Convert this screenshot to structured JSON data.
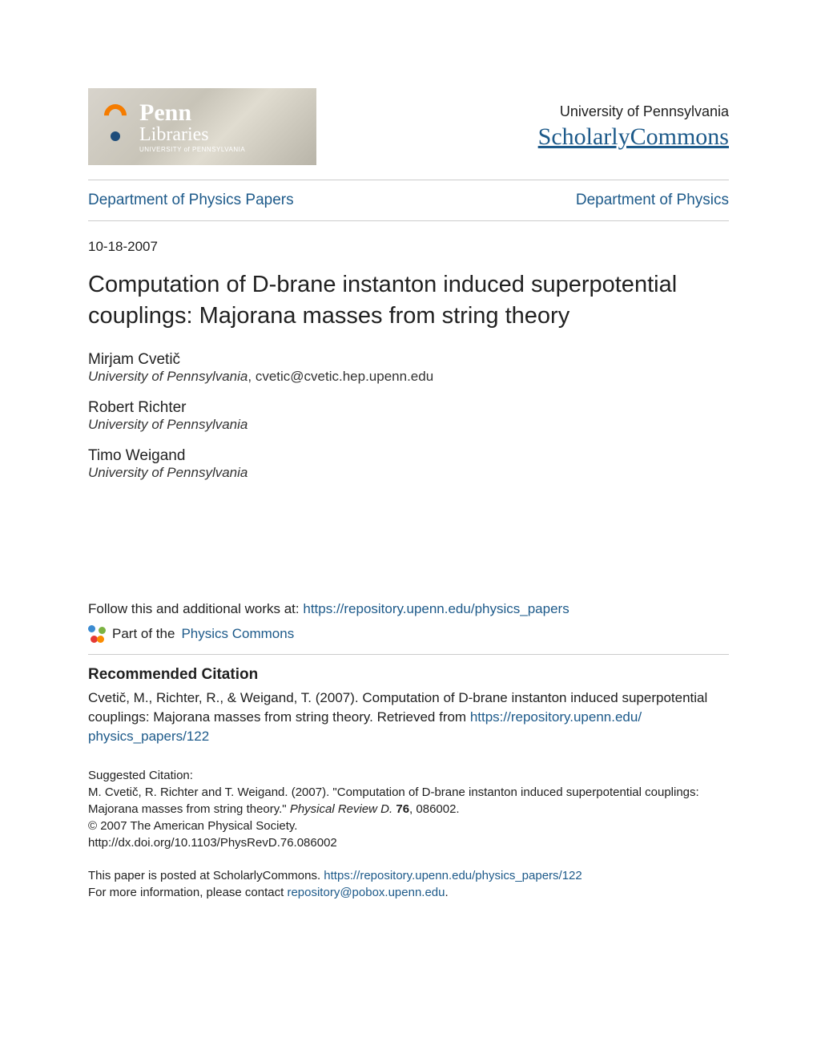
{
  "header": {
    "logo": {
      "line1": "Penn",
      "line2": "Libraries",
      "line3": "UNIVERSITY of PENNSYLVANIA"
    },
    "university": "University of Pennsylvania",
    "site_name": "ScholarlyCommons"
  },
  "nav": {
    "left": "Department of Physics Papers",
    "right": "Department of Physics"
  },
  "date": "10-18-2007",
  "title": "Computation of D-brane instanton induced superpotential couplings: Majorana masses from string theory",
  "authors": [
    {
      "name": "Mirjam Cvetič",
      "affiliation": "University of Pennsylvania",
      "email": "cvetic@cvetic.hep.upenn.edu"
    },
    {
      "name": "Robert Richter",
      "affiliation": "University of Pennsylvania",
      "email": ""
    },
    {
      "name": "Timo Weigand",
      "affiliation": "University of Pennsylvania",
      "email": ""
    }
  ],
  "follow": {
    "prefix": "Follow this and additional works at: ",
    "url": "https://repository.upenn.edu/physics_papers"
  },
  "partof": {
    "prefix": "Part of the ",
    "link": "Physics Commons"
  },
  "citation": {
    "heading": "Recommended Citation",
    "text": "Cvetič, M., Richter, R., & Weigand, T. (2007). Computation of D-brane instanton induced superpotential couplings: Majorana masses from string theory. Retrieved from ",
    "url_line1": "https://repository.upenn.edu/",
    "url_line2": "physics_papers/122"
  },
  "suggested": {
    "label": "Suggested Citation:",
    "text_before_journal": "M. Cvetič, R. Richter and T. Weigand. (2007). \"Computation of D-brane instanton induced superpotential couplings: Majorana masses from string theory.\" ",
    "journal": "Physical Review D.",
    "vol": " 76",
    "after_vol": ", 086002.",
    "copyright": "© 2007 The American Physical Society.",
    "doi": "http://dx.doi.org/10.1103/PhysRevD.76.086002"
  },
  "footer": {
    "line1_prefix": "This paper is posted at ScholarlyCommons. ",
    "line1_url": "https://repository.upenn.edu/physics_papers/122",
    "line2_prefix": "For more information, please contact ",
    "line2_email": "repository@pobox.upenn.edu",
    "line2_suffix": "."
  },
  "colors": {
    "link": "#1d5a8a",
    "text": "#212121",
    "hr": "#cccccc",
    "background": "#ffffff"
  }
}
